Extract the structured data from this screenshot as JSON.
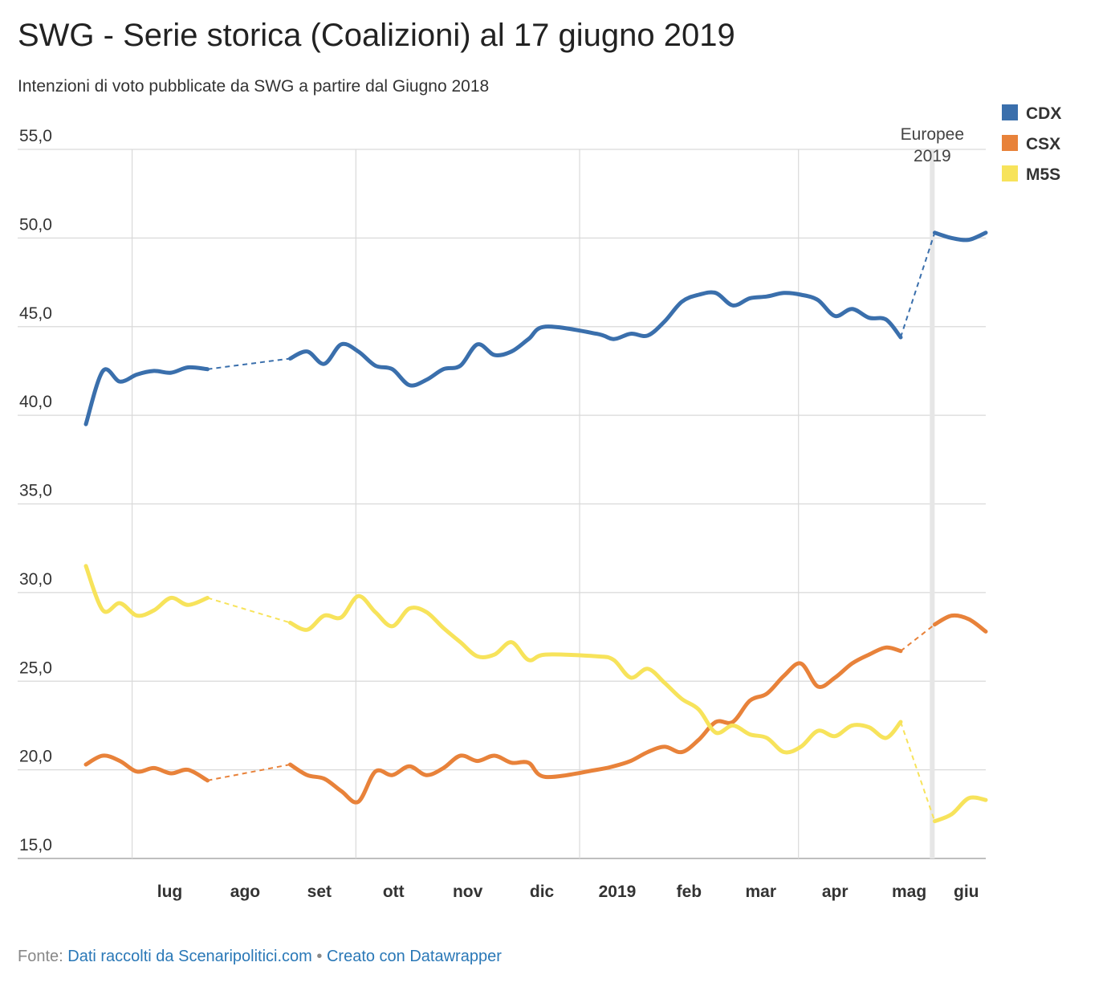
{
  "title": "SWG - Serie storica (Coalizioni) al 17 giugno 2019",
  "subtitle": "Intenzioni di voto pubblicate da SWG a partire dal Giugno 2018",
  "footer": {
    "prefix": "Fonte:",
    "source_link": "Dati raccolti da Scenaripolitici.com",
    "separator": "•",
    "credit_link": "Creato con Datawrapper"
  },
  "chart_data": {
    "type": "line",
    "title": "SWG - Serie storica (Coalizioni) al 17 giugno 2019",
    "subtitle": "Intenzioni di voto pubblicate da SWG a partire dal Giugno 2018",
    "ylim": [
      15,
      55
    ],
    "yticks": [
      15,
      20,
      25,
      30,
      35,
      40,
      45,
      50,
      55
    ],
    "ytick_labels": [
      "15,0",
      "20,0",
      "25,0",
      "30,0",
      "35,0",
      "40,0",
      "45,0",
      "50,0",
      "55,0"
    ],
    "xlim": [
      "2018-06-12",
      "2019-06-17"
    ],
    "xticks": [
      {
        "date": "2018-07-01",
        "label": "lug",
        "grid": true
      },
      {
        "date": "2018-08-01",
        "label": "ago",
        "grid": false
      },
      {
        "date": "2018-09-01",
        "label": "set",
        "grid": false
      },
      {
        "date": "2018-10-01",
        "label": "ott",
        "grid": true
      },
      {
        "date": "2018-11-01",
        "label": "nov",
        "grid": false
      },
      {
        "date": "2018-12-01",
        "label": "dic",
        "grid": false
      },
      {
        "date": "2019-01-01",
        "label": "2019",
        "grid": true
      },
      {
        "date": "2019-02-01",
        "label": "feb",
        "grid": false
      },
      {
        "date": "2019-03-01",
        "label": "mar",
        "grid": false
      },
      {
        "date": "2019-04-01",
        "label": "apr",
        "grid": true
      },
      {
        "date": "2019-05-01",
        "label": "mag",
        "grid": false
      },
      {
        "date": "2019-06-01",
        "label": "giu",
        "grid": false
      }
    ],
    "grid": true,
    "legend_position": "top-right",
    "annotations": [
      {
        "text": "Europee",
        "text2": "2019",
        "date": "2019-05-26"
      }
    ],
    "gaps": [
      [
        "2018-08-01",
        "2018-09-04"
      ],
      [
        "2019-05-13",
        "2019-05-27"
      ]
    ],
    "series": [
      {
        "name": "CDX",
        "color": "#3a6fac",
        "points": [
          [
            "2018-06-12",
            39.5
          ],
          [
            "2018-06-19",
            42.5
          ],
          [
            "2018-06-26",
            41.9
          ],
          [
            "2018-07-03",
            42.3
          ],
          [
            "2018-07-10",
            42.5
          ],
          [
            "2018-07-17",
            42.4
          ],
          [
            "2018-07-24",
            42.7
          ],
          [
            "2018-08-01",
            42.6
          ],
          [
            "2018-09-04",
            43.2
          ],
          [
            "2018-09-11",
            43.6
          ],
          [
            "2018-09-18",
            42.9
          ],
          [
            "2018-09-25",
            44.0
          ],
          [
            "2018-10-02",
            43.6
          ],
          [
            "2018-10-09",
            42.8
          ],
          [
            "2018-10-16",
            42.6
          ],
          [
            "2018-10-23",
            41.7
          ],
          [
            "2018-10-30",
            42.0
          ],
          [
            "2018-11-06",
            42.6
          ],
          [
            "2018-11-13",
            42.8
          ],
          [
            "2018-11-20",
            44.0
          ],
          [
            "2018-11-27",
            43.4
          ],
          [
            "2018-12-04",
            43.6
          ],
          [
            "2018-12-11",
            44.3
          ],
          [
            "2018-12-18",
            45.0
          ],
          [
            "2019-01-08",
            44.6
          ],
          [
            "2019-01-15",
            44.3
          ],
          [
            "2019-01-22",
            44.6
          ],
          [
            "2019-01-29",
            44.5
          ],
          [
            "2019-02-05",
            45.3
          ],
          [
            "2019-02-12",
            46.4
          ],
          [
            "2019-02-19",
            46.8
          ],
          [
            "2019-02-26",
            46.9
          ],
          [
            "2019-03-05",
            46.2
          ],
          [
            "2019-03-12",
            46.6
          ],
          [
            "2019-03-19",
            46.7
          ],
          [
            "2019-03-26",
            46.9
          ],
          [
            "2019-04-02",
            46.8
          ],
          [
            "2019-04-09",
            46.5
          ],
          [
            "2019-04-16",
            45.6
          ],
          [
            "2019-04-23",
            46.0
          ],
          [
            "2019-04-30",
            45.5
          ],
          [
            "2019-05-07",
            45.4
          ],
          [
            "2019-05-13",
            44.4
          ],
          [
            "2019-05-27",
            50.3
          ],
          [
            "2019-06-03",
            50.0
          ],
          [
            "2019-06-10",
            49.9
          ],
          [
            "2019-06-17",
            50.3
          ]
        ]
      },
      {
        "name": "CSX",
        "color": "#e8823a",
        "points": [
          [
            "2018-06-12",
            20.3
          ],
          [
            "2018-06-19",
            20.8
          ],
          [
            "2018-06-26",
            20.5
          ],
          [
            "2018-07-03",
            19.9
          ],
          [
            "2018-07-10",
            20.1
          ],
          [
            "2018-07-17",
            19.8
          ],
          [
            "2018-07-24",
            20.0
          ],
          [
            "2018-08-01",
            19.4
          ],
          [
            "2018-09-04",
            20.3
          ],
          [
            "2018-09-11",
            19.7
          ],
          [
            "2018-09-18",
            19.5
          ],
          [
            "2018-09-25",
            18.8
          ],
          [
            "2018-10-02",
            18.2
          ],
          [
            "2018-10-09",
            19.9
          ],
          [
            "2018-10-16",
            19.7
          ],
          [
            "2018-10-23",
            20.2
          ],
          [
            "2018-10-30",
            19.7
          ],
          [
            "2018-11-06",
            20.1
          ],
          [
            "2018-11-13",
            20.8
          ],
          [
            "2018-11-20",
            20.5
          ],
          [
            "2018-11-27",
            20.8
          ],
          [
            "2018-12-04",
            20.4
          ],
          [
            "2018-12-11",
            20.4
          ],
          [
            "2018-12-18",
            19.6
          ],
          [
            "2019-01-08",
            20.0
          ],
          [
            "2019-01-15",
            20.2
          ],
          [
            "2019-01-22",
            20.5
          ],
          [
            "2019-01-29",
            21.0
          ],
          [
            "2019-02-05",
            21.3
          ],
          [
            "2019-02-12",
            21.0
          ],
          [
            "2019-02-19",
            21.7
          ],
          [
            "2019-02-26",
            22.7
          ],
          [
            "2019-03-05",
            22.7
          ],
          [
            "2019-03-12",
            23.9
          ],
          [
            "2019-03-19",
            24.3
          ],
          [
            "2019-03-26",
            25.3
          ],
          [
            "2019-04-02",
            26.0
          ],
          [
            "2019-04-09",
            24.7
          ],
          [
            "2019-04-16",
            25.2
          ],
          [
            "2019-04-23",
            26.0
          ],
          [
            "2019-04-30",
            26.5
          ],
          [
            "2019-05-07",
            26.9
          ],
          [
            "2019-05-13",
            26.7
          ],
          [
            "2019-05-27",
            28.2
          ],
          [
            "2019-06-03",
            28.7
          ],
          [
            "2019-06-10",
            28.5
          ],
          [
            "2019-06-17",
            27.8
          ]
        ]
      },
      {
        "name": "M5S",
        "color": "#f7e35b",
        "points": [
          [
            "2018-06-12",
            31.5
          ],
          [
            "2018-06-19",
            29.0
          ],
          [
            "2018-06-26",
            29.4
          ],
          [
            "2018-07-03",
            28.7
          ],
          [
            "2018-07-10",
            29.0
          ],
          [
            "2018-07-17",
            29.7
          ],
          [
            "2018-07-24",
            29.3
          ],
          [
            "2018-08-01",
            29.7
          ],
          [
            "2018-09-04",
            28.3
          ],
          [
            "2018-09-11",
            27.9
          ],
          [
            "2018-09-18",
            28.7
          ],
          [
            "2018-09-25",
            28.6
          ],
          [
            "2018-10-02",
            29.8
          ],
          [
            "2018-10-09",
            28.9
          ],
          [
            "2018-10-16",
            28.1
          ],
          [
            "2018-10-23",
            29.1
          ],
          [
            "2018-10-30",
            28.9
          ],
          [
            "2018-11-06",
            28.0
          ],
          [
            "2018-11-13",
            27.2
          ],
          [
            "2018-11-20",
            26.4
          ],
          [
            "2018-11-27",
            26.5
          ],
          [
            "2018-12-04",
            27.2
          ],
          [
            "2018-12-11",
            26.2
          ],
          [
            "2018-12-18",
            26.5
          ],
          [
            "2019-01-08",
            26.4
          ],
          [
            "2019-01-15",
            26.2
          ],
          [
            "2019-01-22",
            25.2
          ],
          [
            "2019-01-29",
            25.7
          ],
          [
            "2019-02-05",
            24.9
          ],
          [
            "2019-02-12",
            24.0
          ],
          [
            "2019-02-19",
            23.4
          ],
          [
            "2019-02-26",
            22.1
          ],
          [
            "2019-03-05",
            22.5
          ],
          [
            "2019-03-12",
            22.0
          ],
          [
            "2019-03-19",
            21.8
          ],
          [
            "2019-03-26",
            21.0
          ],
          [
            "2019-04-02",
            21.3
          ],
          [
            "2019-04-09",
            22.2
          ],
          [
            "2019-04-16",
            21.9
          ],
          [
            "2019-04-23",
            22.5
          ],
          [
            "2019-04-30",
            22.4
          ],
          [
            "2019-05-07",
            21.8
          ],
          [
            "2019-05-13",
            22.7
          ],
          [
            "2019-05-27",
            17.1
          ],
          [
            "2019-06-03",
            17.5
          ],
          [
            "2019-06-10",
            18.4
          ],
          [
            "2019-06-17",
            18.3
          ]
        ]
      }
    ]
  }
}
